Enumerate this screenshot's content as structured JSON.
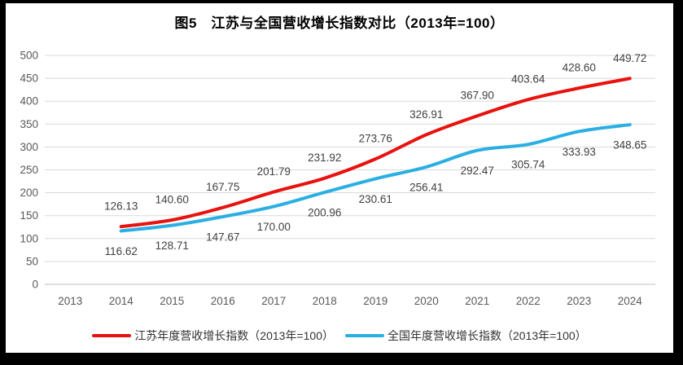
{
  "title": "图5　江苏与全国营收增长指数对比（2013年=100）",
  "frame": {
    "background": "#000000",
    "panel_background": "#ffffff"
  },
  "colors": {
    "gridline": "#d9d9d9",
    "axis_line": "#bfbfbf",
    "tick_label": "#595959",
    "data_label": "#404040",
    "title_text": "#000000",
    "jiangsu_red": "#e8120e",
    "national_blue": "#2bafe3"
  },
  "chart_data": {
    "type": "line",
    "title": "图5　江苏与全国营收增长指数对比（2013年=100）",
    "categories": [
      "2013",
      "2014",
      "2015",
      "2016",
      "2017",
      "2018",
      "2019",
      "2020",
      "2021",
      "2022",
      "2023",
      "2024"
    ],
    "series": [
      {
        "name": "江苏年度营收增长指数（2013年=100）",
        "color": "#e8120e",
        "values": [
          null,
          126.13,
          140.6,
          167.75,
          201.79,
          231.92,
          273.76,
          326.91,
          367.9,
          403.64,
          428.6,
          449.72
        ],
        "labels": [
          "",
          "126.13",
          "140.60",
          "167.75",
          "201.79",
          "231.92",
          "273.76",
          "326.91",
          "367.90",
          "403.64",
          "428.60",
          "449.72"
        ],
        "label_offset": -25
      },
      {
        "name": "全国年度营收增长指数（2013年=100）",
        "color": "#2bafe3",
        "values": [
          null,
          116.62,
          128.71,
          147.67,
          170.0,
          200.96,
          230.61,
          256.41,
          292.47,
          305.74,
          333.93,
          348.65
        ],
        "labels": [
          "",
          "116.62",
          "128.71",
          "147.67",
          "170.00",
          "200.96",
          "230.61",
          "256.41",
          "292.47",
          "305.74",
          "333.93",
          "348.65"
        ],
        "label_offset": 25
      }
    ],
    "ylim": [
      0,
      500
    ],
    "ytick_step": 50,
    "grid": true,
    "legend_position": "bottom",
    "smooth_lines": true
  }
}
